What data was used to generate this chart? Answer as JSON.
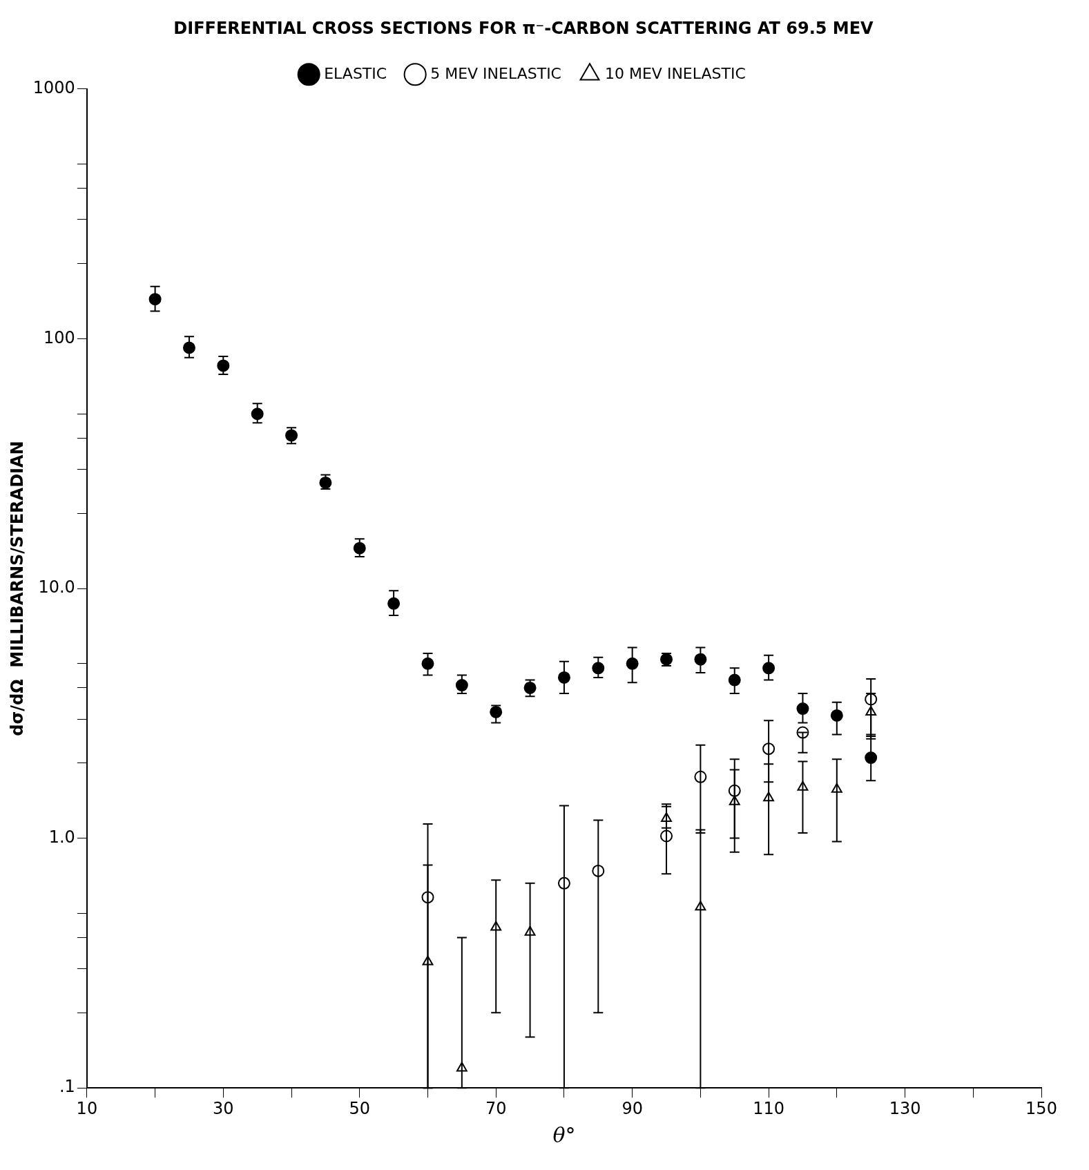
{
  "chart_data": {
    "type": "scatter",
    "title": "DIFFERENTIAL CROSS SECTIONS FOR π⁻-CARBON SCATTERING AT 69.5 MEV",
    "xlabel": "θ°",
    "ylabel": "dσ/dΩ  MILLIBARNS/STERADIAN",
    "log": "y",
    "grid": false,
    "legend": "top",
    "xlim": [
      10,
      150
    ],
    "xticks": [
      10,
      {
        "value": 20,
        "label": null
      },
      30,
      {
        "value": 40,
        "label": null
      },
      50,
      {
        "value": 60,
        "label": null
      },
      70,
      {
        "value": 80,
        "label": null
      },
      90,
      {
        "value": 100,
        "label": null
      },
      110,
      {
        "value": 120,
        "label": null
      },
      130,
      {
        "value": 140,
        "label": null
      },
      150
    ],
    "ylim": [
      0.1,
      1000
    ],
    "yticks": [
      {
        "value": 0.1,
        "label": ".1"
      },
      {
        "value": 0.2,
        "label": null
      },
      {
        "value": 0.3,
        "label": null
      },
      {
        "value": 0.4,
        "label": null
      },
      {
        "value": 0.5,
        "label": null
      },
      {
        "value": 1,
        "label": "1.0"
      },
      {
        "value": 2,
        "label": null
      },
      {
        "value": 3,
        "label": null
      },
      {
        "value": 4,
        "label": null
      },
      {
        "value": 5,
        "label": null
      },
      {
        "value": 10,
        "label": "10.0"
      },
      {
        "value": 20,
        "label": null
      },
      {
        "value": 30,
        "label": null
      },
      {
        "value": 40,
        "label": null
      },
      {
        "value": 50,
        "label": null
      },
      100,
      {
        "value": 200,
        "label": null
      },
      {
        "value": 300,
        "label": null
      },
      {
        "value": 400,
        "label": null
      },
      {
        "value": 500,
        "label": null
      },
      1000
    ],
    "series": [
      {
        "name": "ELASTIC",
        "color": "#000000",
        "marker": "circle",
        "x": [
          20,
          25,
          30,
          35,
          40,
          45,
          50,
          55,
          60,
          65,
          70,
          75,
          80,
          85,
          90,
          95,
          100,
          105,
          110,
          115,
          120,
          125
        ],
        "values": [
          144,
          92,
          78,
          50,
          41,
          26.5,
          14.5,
          8.7,
          5.0,
          4.1,
          3.2,
          4.0,
          4.4,
          4.8,
          5.0,
          5.2,
          5.2,
          4.3,
          4.8,
          3.3,
          3.1,
          2.1
        ],
        "errors": [
          [
            129,
            162
          ],
          [
            84,
            102
          ],
          [
            72,
            85
          ],
          [
            46,
            55
          ],
          [
            38,
            44
          ],
          [
            25,
            28.5
          ],
          [
            13.4,
            15.8
          ],
          [
            7.8,
            9.8
          ],
          [
            4.5,
            5.5
          ],
          [
            3.8,
            4.5
          ],
          [
            2.9,
            3.4
          ],
          [
            3.7,
            4.3
          ],
          [
            3.8,
            5.1
          ],
          [
            4.4,
            5.3
          ],
          [
            4.2,
            5.8
          ],
          [
            4.9,
            5.5
          ],
          [
            4.6,
            5.8
          ],
          [
            3.8,
            4.8
          ],
          [
            4.3,
            5.4
          ],
          [
            2.9,
            3.8
          ],
          [
            2.6,
            3.5
          ],
          [
            1.7,
            2.6
          ]
        ]
      },
      {
        "name": "5 MEV INELASTIC",
        "color": "#000000",
        "marker": "open-circle",
        "x": [
          60,
          80,
          85,
          95,
          100,
          105,
          110,
          115,
          125
        ],
        "values": [
          0.58,
          0.66,
          0.74,
          1.02,
          1.76,
          1.55,
          2.28,
          2.65,
          3.6
        ],
        "errors": [
          [
            0.1,
            1.14
          ],
          [
            0.1,
            1.35
          ],
          [
            0.2,
            1.18
          ],
          [
            0.72,
            1.37
          ],
          [
            1.05,
            2.36
          ],
          [
            1.0,
            2.07
          ],
          [
            1.68,
            2.96
          ],
          [
            2.2,
            2.65
          ],
          [
            2.56,
            4.34
          ]
        ]
      },
      {
        "name": "10 MEV INELASTIC",
        "color": "#000000",
        "marker": "triangle",
        "x": [
          60,
          65,
          70,
          75,
          95,
          100,
          105,
          110,
          115,
          120,
          125
        ],
        "values": [
          0.32,
          0.12,
          0.44,
          0.42,
          1.2,
          0.53,
          1.4,
          1.45,
          1.6,
          1.57,
          3.2
        ],
        "errors": [
          [
            0.1,
            0.78
          ],
          [
            0.1,
            0.4
          ],
          [
            0.2,
            0.68
          ],
          [
            0.16,
            0.66
          ],
          [
            1.1,
            1.34
          ],
          [
            0.1,
            1.08
          ],
          [
            0.88,
            1.88
          ],
          [
            0.86,
            1.98
          ],
          [
            1.05,
            2.03
          ],
          [
            0.97,
            2.07
          ],
          [
            2.5,
            3.8
          ]
        ]
      }
    ]
  }
}
